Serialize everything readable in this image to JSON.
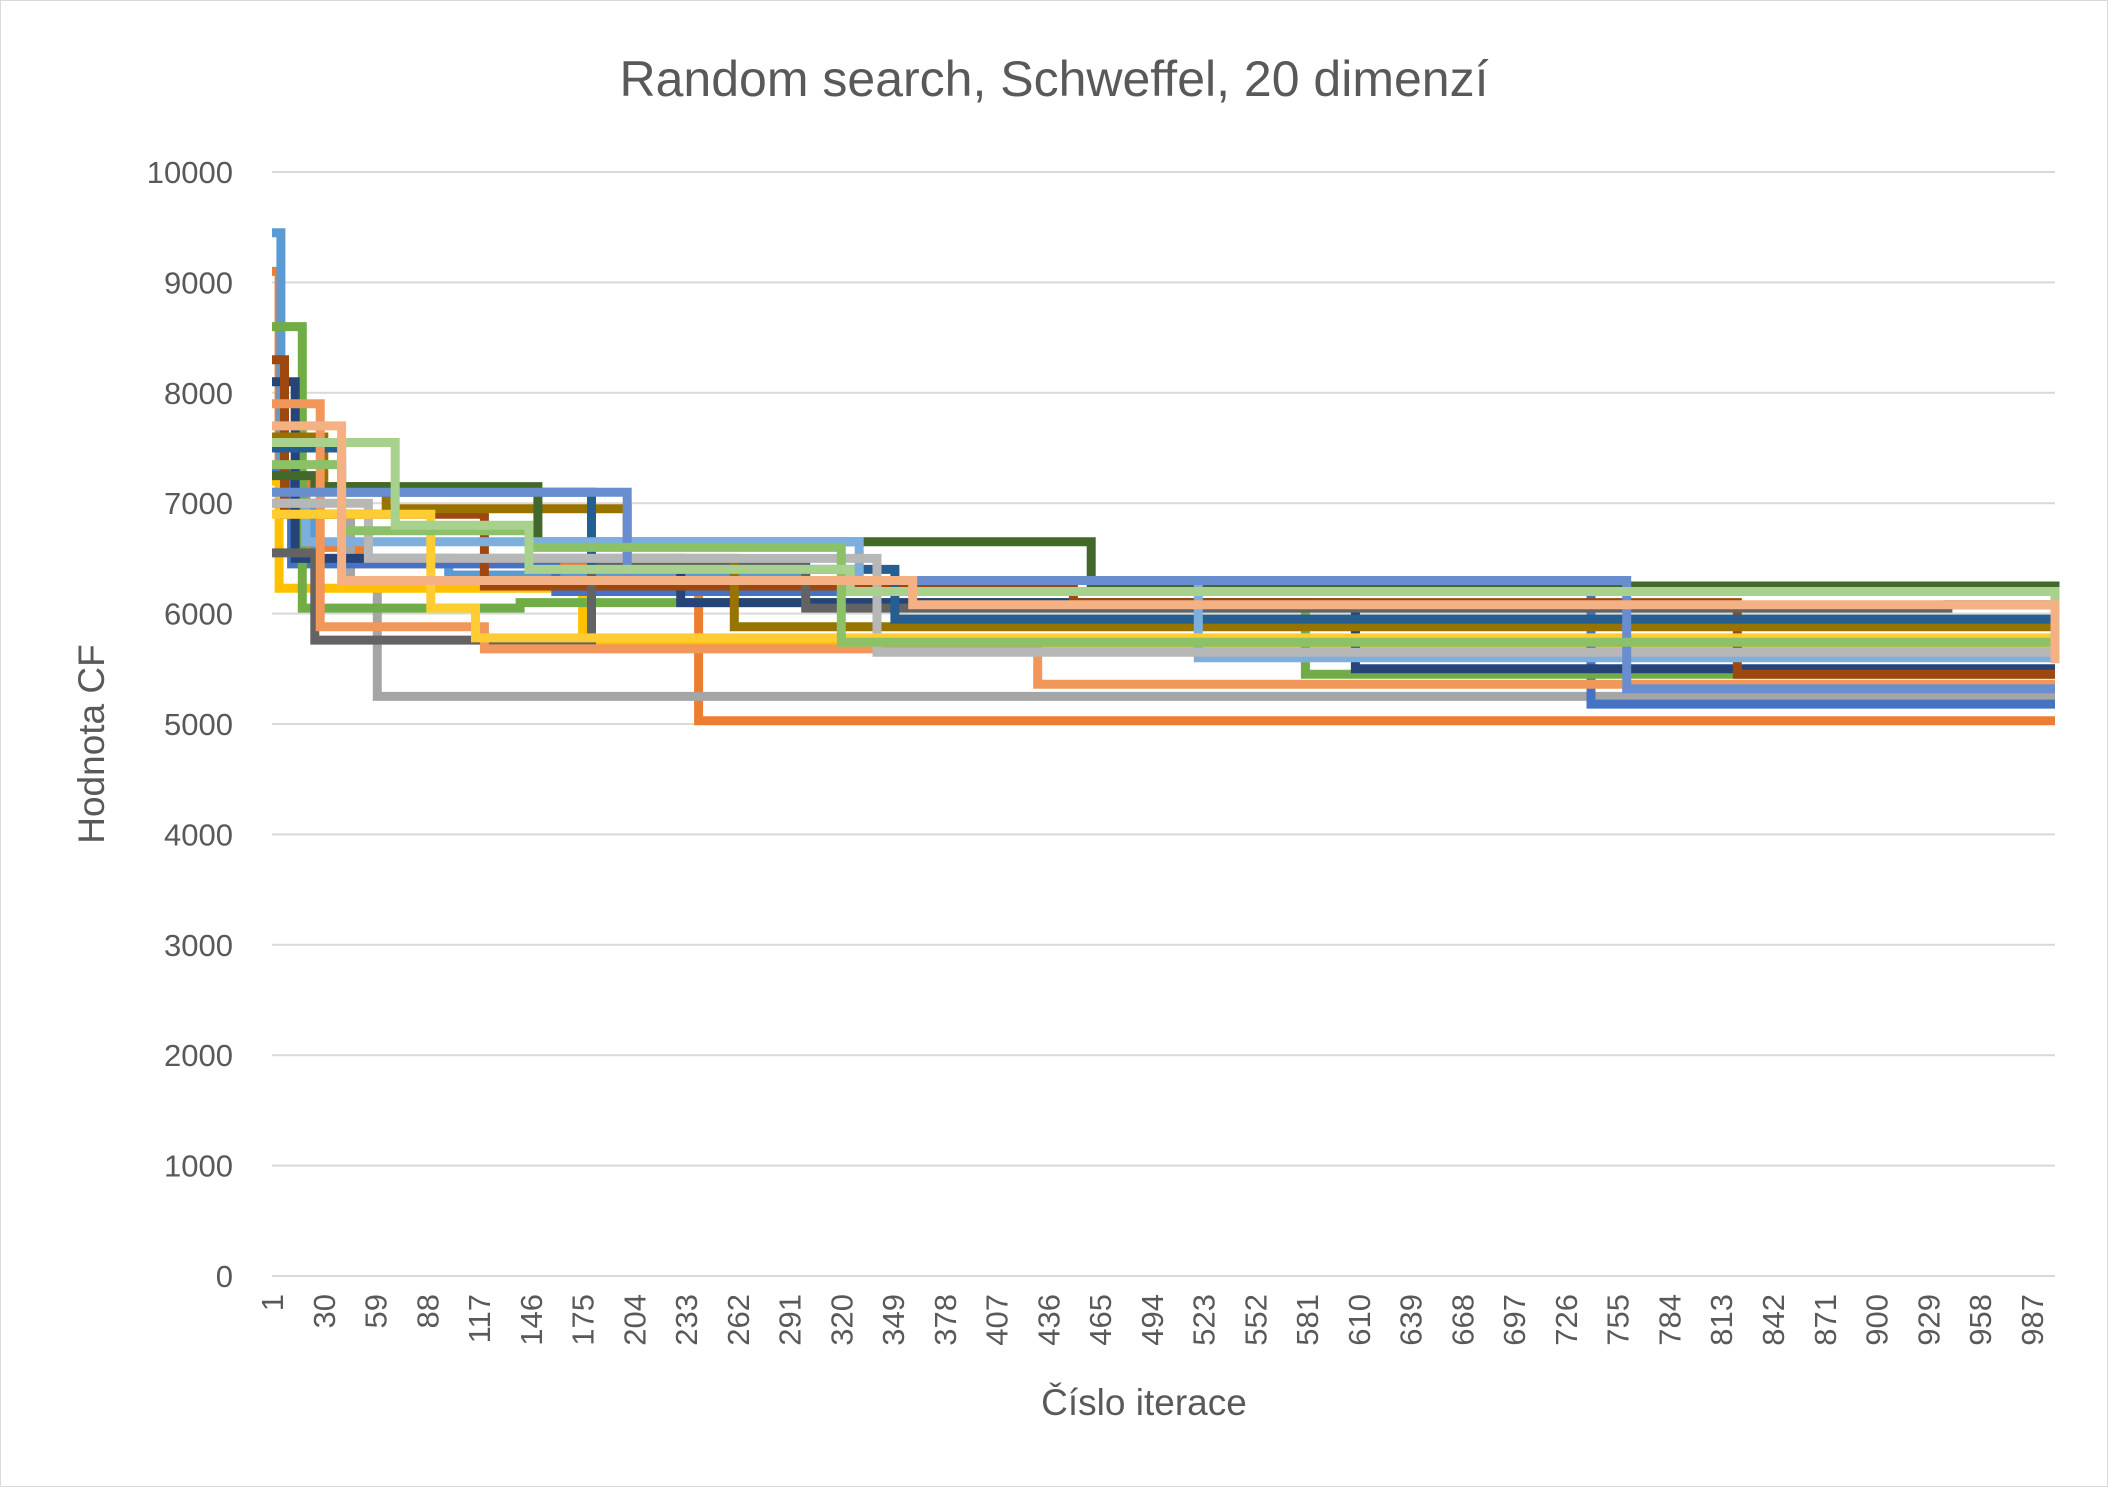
{
  "chart_data": {
    "type": "line",
    "title": "Random search, Schweffel, 20 dimenzí",
    "xlabel": "Číslo iterace",
    "ylabel": "Hodnota CF",
    "ylim": [
      0,
      10000
    ],
    "yticks": [
      0,
      1000,
      2000,
      3000,
      4000,
      5000,
      6000,
      7000,
      8000,
      9000,
      10000
    ],
    "xlim": [
      1,
      1000
    ],
    "xticks": [
      1,
      30,
      59,
      88,
      117,
      146,
      175,
      204,
      233,
      262,
      291,
      320,
      349,
      378,
      407,
      436,
      465,
      494,
      523,
      552,
      581,
      610,
      639,
      668,
      697,
      726,
      755,
      784,
      813,
      842,
      871,
      900,
      929,
      958,
      987
    ],
    "grid": true,
    "legend": "none",
    "series": [
      {
        "color": "#ed7d31",
        "points": [
          [
            1,
            9100
          ],
          [
            5,
            7200
          ],
          [
            20,
            6600
          ],
          [
            50,
            6450
          ],
          [
            240,
            5030
          ],
          [
            1000,
            5030
          ]
        ]
      },
      {
        "color": "#5b9bd5",
        "points": [
          [
            1,
            9450
          ],
          [
            6,
            7000
          ],
          [
            25,
            6500
          ],
          [
            100,
            6350
          ],
          [
            300,
            6200
          ],
          [
            1000,
            6200
          ]
        ]
      },
      {
        "color": "#a5a5a5",
        "points": [
          [
            1,
            7100
          ],
          [
            10,
            6900
          ],
          [
            45,
            6300
          ],
          [
            60,
            5250
          ],
          [
            1000,
            5250
          ]
        ]
      },
      {
        "color": "#ffc000",
        "points": [
          [
            1,
            7200
          ],
          [
            5,
            6230
          ],
          [
            175,
            5720
          ],
          [
            1000,
            5720
          ]
        ]
      },
      {
        "color": "#4472c4",
        "points": [
          [
            1,
            7300
          ],
          [
            12,
            6450
          ],
          [
            160,
            6200
          ],
          [
            740,
            5180
          ],
          [
            1000,
            5180
          ]
        ]
      },
      {
        "color": "#70ad47",
        "points": [
          [
            1,
            8600
          ],
          [
            18,
            6050
          ],
          [
            140,
            6100
          ],
          [
            580,
            5450
          ],
          [
            1000,
            5450
          ]
        ]
      },
      {
        "color": "#264478",
        "points": [
          [
            1,
            8100
          ],
          [
            14,
            6500
          ],
          [
            230,
            6100
          ],
          [
            608,
            5500
          ],
          [
            1000,
            5500
          ]
        ]
      },
      {
        "color": "#9e480e",
        "points": [
          [
            1,
            8300
          ],
          [
            8,
            6900
          ],
          [
            120,
            6250
          ],
          [
            450,
            6100
          ],
          [
            822,
            5450
          ],
          [
            1000,
            5450
          ]
        ]
      },
      {
        "color": "#636363",
        "points": [
          [
            1,
            6550
          ],
          [
            25,
            5760
          ],
          [
            180,
            6450
          ],
          [
            300,
            6050
          ],
          [
            940,
            6080
          ],
          [
            1000,
            5800
          ]
        ]
      },
      {
        "color": "#997300",
        "points": [
          [
            1,
            7600
          ],
          [
            30,
            7150
          ],
          [
            65,
            6950
          ],
          [
            200,
            6500
          ],
          [
            260,
            5880
          ],
          [
            1000,
            5880
          ]
        ]
      },
      {
        "color": "#255e91",
        "points": [
          [
            1,
            7500
          ],
          [
            40,
            7100
          ],
          [
            180,
            6400
          ],
          [
            350,
            5950
          ],
          [
            1000,
            5950
          ]
        ]
      },
      {
        "color": "#43682b",
        "points": [
          [
            1,
            7250
          ],
          [
            25,
            7150
          ],
          [
            150,
            6650
          ],
          [
            460,
            6250
          ],
          [
            1000,
            6000
          ]
        ]
      },
      {
        "color": "#7cafdd",
        "points": [
          [
            1,
            7000
          ],
          [
            20,
            6650
          ],
          [
            330,
            6300
          ],
          [
            520,
            5600
          ],
          [
            1000,
            5600
          ]
        ]
      },
      {
        "color": "#f1975a",
        "points": [
          [
            1,
            7900
          ],
          [
            28,
            5880
          ],
          [
            120,
            5680
          ],
          [
            430,
            5360
          ],
          [
            1000,
            5360
          ]
        ]
      },
      {
        "color": "#b7b7b7",
        "points": [
          [
            1,
            7000
          ],
          [
            55,
            6500
          ],
          [
            340,
            5650
          ],
          [
            1000,
            5650
          ]
        ]
      },
      {
        "color": "#ffcd33",
        "points": [
          [
            1,
            6900
          ],
          [
            90,
            6050
          ],
          [
            115,
            5780
          ],
          [
            1000,
            5780
          ]
        ]
      },
      {
        "color": "#698ed0",
        "points": [
          [
            1,
            7100
          ],
          [
            200,
            6300
          ],
          [
            760,
            5320
          ],
          [
            1000,
            5320
          ]
        ]
      },
      {
        "color": "#8cc168",
        "points": [
          [
            1,
            7350
          ],
          [
            40,
            6750
          ],
          [
            145,
            6600
          ],
          [
            320,
            5740
          ],
          [
            1000,
            5740
          ]
        ]
      },
      {
        "color": "#a9d18e",
        "points": [
          [
            1,
            7550
          ],
          [
            70,
            6800
          ],
          [
            145,
            6400
          ],
          [
            325,
            6200
          ],
          [
            1000,
            5830
          ]
        ]
      },
      {
        "color": "#f4b183",
        "points": [
          [
            1,
            7700
          ],
          [
            40,
            6300
          ],
          [
            360,
            6080
          ],
          [
            1000,
            5550
          ]
        ]
      }
    ]
  }
}
